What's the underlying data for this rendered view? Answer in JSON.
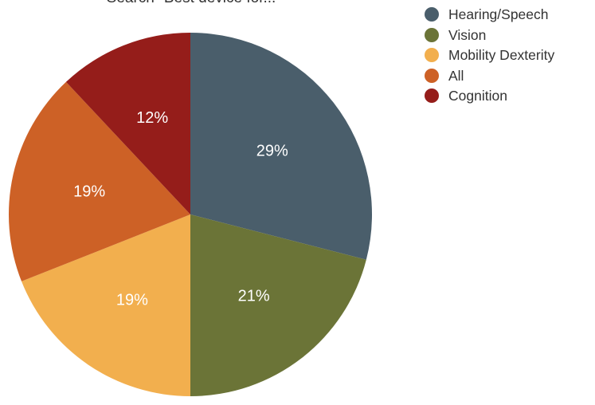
{
  "chart_data": {
    "type": "pie",
    "title": "Search \"Best device for...",
    "categories": [
      "Hearing/Speech",
      "Vision",
      "Mobility Dexterity",
      "All",
      "Cognition"
    ],
    "values": [
      29,
      21,
      19,
      19,
      12
    ],
    "value_labels": [
      "29%",
      "21%",
      "19%",
      "19%",
      "12%"
    ],
    "colors": [
      "#4a5e6b",
      "#6b7437",
      "#f2af4e",
      "#cd6126",
      "#951d1a"
    ],
    "legend_position": "top-right",
    "start_angle": "12 o'clock, clockwise"
  }
}
